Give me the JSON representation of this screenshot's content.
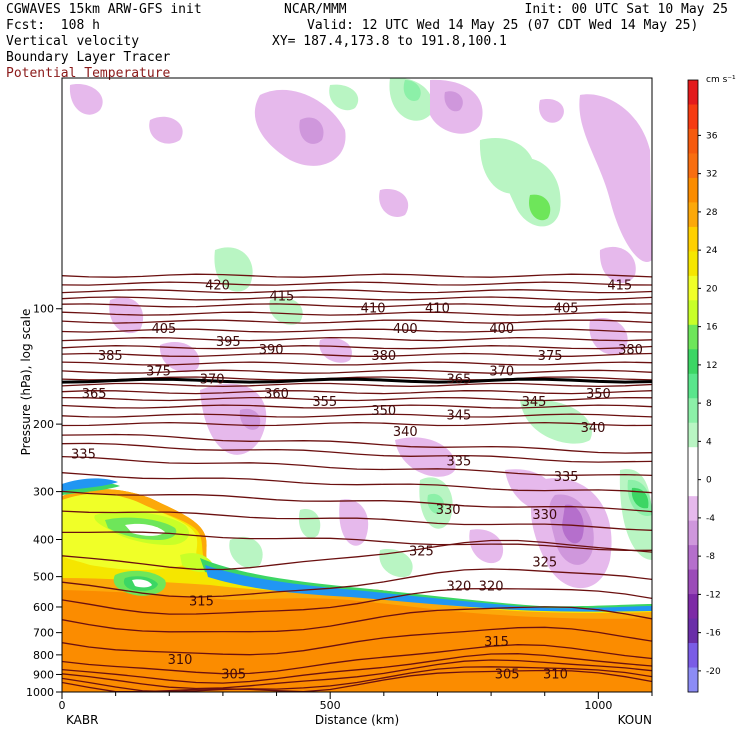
{
  "header": {
    "model": "CGWAVES 15km ARW-GFS init",
    "org": "NCAR/MMM",
    "init": "Init: 00 UTC Sat 10 May 25",
    "fcst": "Fcst:  108 h",
    "valid": "Valid: 12 UTC Wed 14 May 25 (07 CDT Wed 14 May 25)",
    "xy": "XY= 187.4,173.8 to 191.8,100.1",
    "fields": [
      "Vertical velocity",
      "Boundary Layer Tracer",
      "Potential Temperature"
    ]
  },
  "chart_data": {
    "type": "cross-section",
    "xlabel": "Distance (km)",
    "ylabel": "Pressure (hPa), log scale",
    "x_ticks": [
      0,
      500,
      1000
    ],
    "xlim": [
      0,
      1100
    ],
    "x_endpoints": {
      "left": "KABR",
      "right": "KOUN"
    },
    "y_ticks": [
      100,
      200,
      300,
      400,
      500,
      600,
      700,
      800,
      900,
      1000
    ],
    "ylim": [
      1000,
      25
    ],
    "y_scale": "log",
    "colorbar": {
      "unit": "cm s⁻¹",
      "levels": [
        36,
        32,
        28,
        24,
        20,
        16,
        12,
        8,
        4,
        0,
        -4,
        -8,
        -12,
        -16,
        -20
      ],
      "colors": [
        "#e31a1c",
        "#f53b12",
        "#f55a0e",
        "#f86e10",
        "#fb8c00",
        "#fca80a",
        "#ffd000",
        "#f5e600",
        "#f0ff28",
        "#c8ff28",
        "#6ee65a",
        "#3cd664",
        "#5ae68c",
        "#8cf0a8",
        "#b9f5c3",
        "#ffffff",
        "#ffffff",
        "#e6b9ec",
        "#cf97dc",
        "#b56fcc",
        "#9b4bb8",
        "#7d2aa6",
        "#6a2ea8",
        "#7a5ce6",
        "#8c8cf5"
      ],
      "ticks": [
        "36",
        "32",
        "28",
        "24",
        "20",
        "16",
        "12",
        "8",
        "4",
        "0",
        "-4",
        "-8",
        "-12",
        "-16",
        "-20"
      ]
    },
    "theta_contours": [
      {
        "label": "420",
        "x": 290,
        "p": 87
      },
      {
        "label": "415",
        "x": 410,
        "p": 93
      },
      {
        "label": "415",
        "x": 1040,
        "p": 87
      },
      {
        "label": "410",
        "x": 580,
        "p": 100
      },
      {
        "label": "410",
        "x": 700,
        "p": 100
      },
      {
        "label": "405",
        "x": 190,
        "p": 113
      },
      {
        "label": "405",
        "x": 940,
        "p": 100
      },
      {
        "label": "400",
        "x": 640,
        "p": 113
      },
      {
        "label": "400",
        "x": 820,
        "p": 113
      },
      {
        "label": "395",
        "x": 310,
        "p": 122
      },
      {
        "label": "390",
        "x": 390,
        "p": 128
      },
      {
        "label": "385",
        "x": 90,
        "p": 133
      },
      {
        "label": "380",
        "x": 600,
        "p": 133
      },
      {
        "label": "380",
        "x": 1060,
        "p": 128
      },
      {
        "label": "375",
        "x": 180,
        "p": 146
      },
      {
        "label": "375",
        "x": 910,
        "p": 133
      },
      {
        "label": "370",
        "x": 280,
        "p": 153
      },
      {
        "label": "370",
        "x": 820,
        "p": 146
      },
      {
        "label": "365",
        "x": 60,
        "p": 167
      },
      {
        "label": "365",
        "x": 740,
        "p": 153
      },
      {
        "label": "360",
        "x": 400,
        "p": 167
      },
      {
        "label": "355",
        "x": 490,
        "p": 175
      },
      {
        "label": "350",
        "x": 600,
        "p": 185
      },
      {
        "label": "350",
        "x": 1000,
        "p": 167
      },
      {
        "label": "345",
        "x": 740,
        "p": 190
      },
      {
        "label": "345",
        "x": 880,
        "p": 175
      },
      {
        "label": "340",
        "x": 640,
        "p": 210
      },
      {
        "label": "340",
        "x": 990,
        "p": 205
      },
      {
        "label": "335",
        "x": 40,
        "p": 240
      },
      {
        "label": "335",
        "x": 740,
        "p": 250
      },
      {
        "label": "335",
        "x": 940,
        "p": 275
      },
      {
        "label": "330",
        "x": 720,
        "p": 335
      },
      {
        "label": "330",
        "x": 900,
        "p": 345
      },
      {
        "label": "325",
        "x": 670,
        "p": 430
      },
      {
        "label": "325",
        "x": 900,
        "p": 460
      },
      {
        "label": "320",
        "x": 740,
        "p": 530
      },
      {
        "label": "320",
        "x": 800,
        "p": 530
      },
      {
        "label": "315",
        "x": 260,
        "p": 580
      },
      {
        "label": "315",
        "x": 810,
        "p": 740
      },
      {
        "label": "310",
        "x": 220,
        "p": 825
      },
      {
        "label": "310",
        "x": 920,
        "p": 900
      },
      {
        "label": "305",
        "x": 320,
        "p": 900
      },
      {
        "label": "305",
        "x": 830,
        "p": 900
      }
    ]
  }
}
